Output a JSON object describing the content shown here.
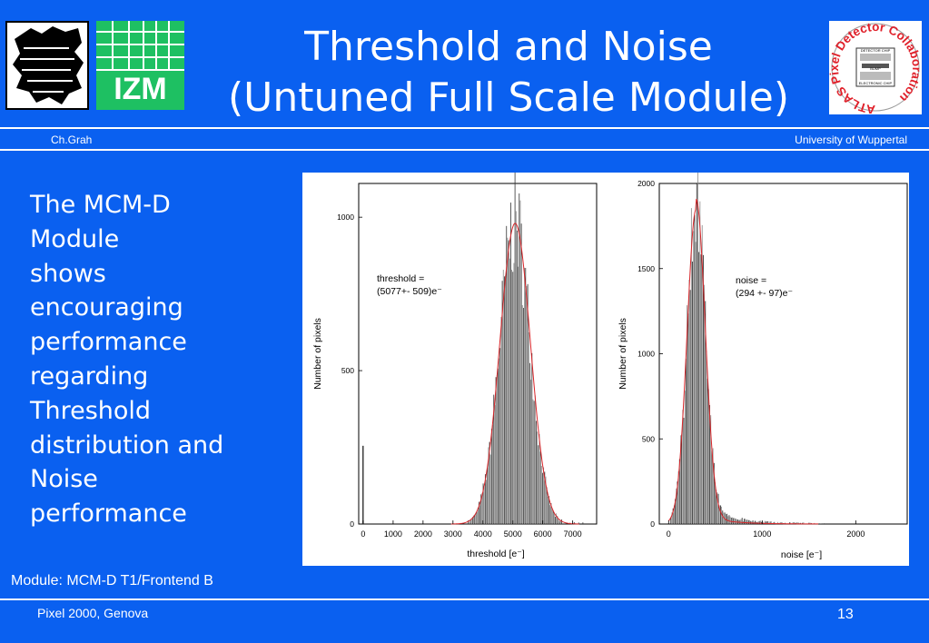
{
  "slide": {
    "title_line1": "Threshold and Noise",
    "title_line2": "(Untuned Full Scale Module)",
    "author": "Ch.Grah",
    "institution": "University of Wuppertal",
    "body_lines": [
      "The MCM-D",
      "Module",
      "shows",
      "encouraging",
      "performance",
      "regarding",
      "Threshold",
      "distribution and",
      "Noise",
      "performance"
    ],
    "caption": "Module: MCM-D T1/Frontend B",
    "footer_left": "Pixel 2000, Genova",
    "page_number": "13",
    "logos": {
      "izm_text": "IZM",
      "atlas_text": "ATLAS Pixel Detector Collaboration",
      "atlas_small1": "DETECTOR CHIP",
      "atlas_small2": "BUMP",
      "atlas_small3": "ELECTRONIC CHIP"
    },
    "colors": {
      "background": "#0a60f0",
      "izm_green": "#1ec062",
      "fit_curve": "#d8262a"
    }
  },
  "chart_data": [
    {
      "type": "bar",
      "title": "",
      "xlabel": "threshold [e⁻]",
      "ylabel": "Number of pixels",
      "xlim": [
        -150,
        7800
      ],
      "ylim": [
        0,
        1110
      ],
      "xticks": [
        0,
        1000,
        2000,
        3000,
        4000,
        5000,
        6000,
        7000
      ],
      "yticks": [
        0,
        500,
        1000
      ],
      "annotation_line1": "threshold =",
      "annotation_line2": "(5077+- 509)e⁻",
      "fit": {
        "mean": 5077,
        "sigma": 509,
        "amplitude": 980
      },
      "outlier": {
        "x": 0,
        "y": 255
      }
    },
    {
      "type": "bar",
      "title": "",
      "xlabel": "noise [e⁻]",
      "ylabel": "Number of pixels",
      "xlim": [
        -100,
        2550
      ],
      "ylim": [
        0,
        2000
      ],
      "xticks": [
        0,
        1000,
        2000
      ],
      "yticks": [
        0,
        500,
        1000,
        1500,
        2000
      ],
      "annotation_line1": "noise =",
      "annotation_line2": "(294 +- 97)e⁻",
      "fit": {
        "mean": 294,
        "sigma": 97,
        "amplitude": 1850
      }
    }
  ]
}
